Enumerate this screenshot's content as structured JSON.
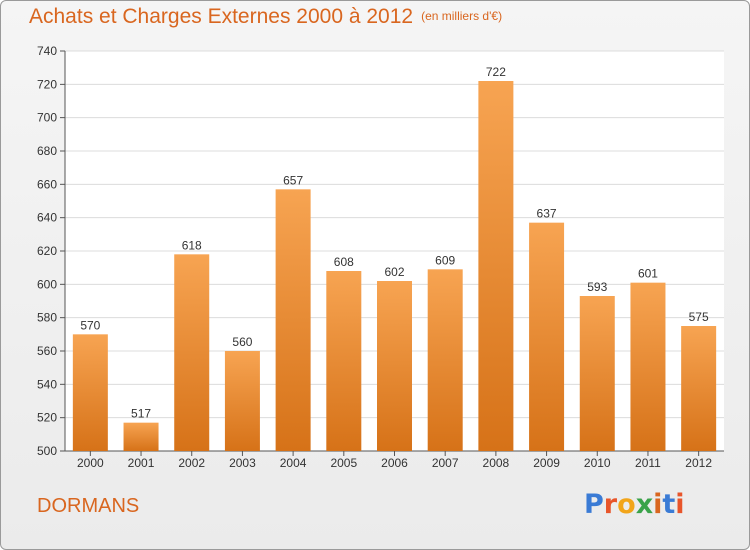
{
  "header": {
    "title": "Achats et Charges Externes 2000 à 2012",
    "unit": "(en milliers d'€)"
  },
  "footer": {
    "commune": "DORMANS",
    "logo_text": "Proxiti",
    "logo_colors": [
      "#3a7bd5",
      "#e8552a",
      "#f2a51a",
      "#3aa34a",
      "#d9661f",
      "#3a7bd5",
      "#e8552a"
    ]
  },
  "colors": {
    "accent": "#d9661f",
    "bar_light": "#f7a452",
    "bar_dark": "#d67218"
  },
  "chart_data": {
    "type": "bar",
    "title": "Achats et Charges Externes 2000 à 2012",
    "categories": [
      "2000",
      "2001",
      "2002",
      "2003",
      "2004",
      "2005",
      "2006",
      "2007",
      "2008",
      "2009",
      "2010",
      "2011",
      "2012"
    ],
    "values": [
      570,
      517,
      618,
      560,
      657,
      608,
      602,
      609,
      722,
      637,
      593,
      601,
      575
    ],
    "ylim": [
      500,
      740
    ],
    "yticks": [
      500,
      520,
      540,
      560,
      580,
      600,
      620,
      640,
      660,
      680,
      700,
      720,
      740
    ],
    "grid": true,
    "xlabel": "",
    "ylabel": ""
  }
}
